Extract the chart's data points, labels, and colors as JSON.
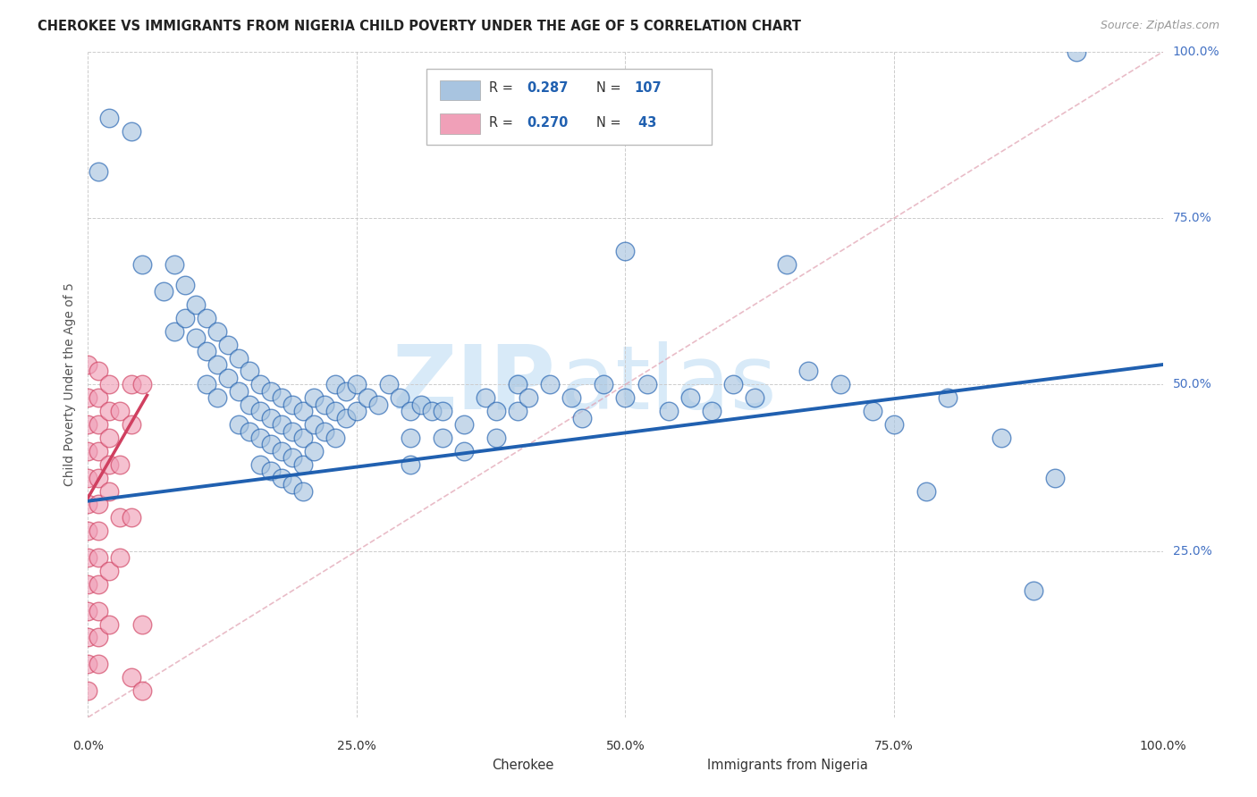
{
  "title": "CHEROKEE VS IMMIGRANTS FROM NIGERIA CHILD POVERTY UNDER THE AGE OF 5 CORRELATION CHART",
  "source": "Source: ZipAtlas.com",
  "ylabel": "Child Poverty Under the Age of 5",
  "xlim": [
    0.0,
    1.0
  ],
  "ylim": [
    0.0,
    1.0
  ],
  "xtick_labels": [
    "0.0%",
    "25.0%",
    "50.0%",
    "75.0%",
    "100.0%"
  ],
  "xtick_positions": [
    0.0,
    0.25,
    0.5,
    0.75,
    1.0
  ],
  "ytick_labels": [
    "25.0%",
    "50.0%",
    "75.0%",
    "100.0%"
  ],
  "ytick_positions": [
    0.25,
    0.5,
    0.75,
    1.0
  ],
  "cherokee_color": "#a8c4e0",
  "nigeria_color": "#f0a0b8",
  "cherokee_line_color": "#2060b0",
  "nigeria_line_color": "#d04060",
  "watermark_color": "#d8eaf8",
  "cherokee_intercept": 0.325,
  "cherokee_slope": 0.205,
  "nigeria_intercept": 0.33,
  "nigeria_slope": 2.8,
  "nigeria_line_xmax": 0.055,
  "cherokee_points": [
    [
      0.01,
      0.82
    ],
    [
      0.02,
      0.9
    ],
    [
      0.04,
      0.88
    ],
    [
      0.05,
      0.68
    ],
    [
      0.07,
      0.64
    ],
    [
      0.08,
      0.68
    ],
    [
      0.08,
      0.58
    ],
    [
      0.09,
      0.65
    ],
    [
      0.09,
      0.6
    ],
    [
      0.1,
      0.62
    ],
    [
      0.1,
      0.57
    ],
    [
      0.11,
      0.6
    ],
    [
      0.11,
      0.55
    ],
    [
      0.11,
      0.5
    ],
    [
      0.12,
      0.58
    ],
    [
      0.12,
      0.53
    ],
    [
      0.12,
      0.48
    ],
    [
      0.13,
      0.56
    ],
    [
      0.13,
      0.51
    ],
    [
      0.14,
      0.54
    ],
    [
      0.14,
      0.49
    ],
    [
      0.14,
      0.44
    ],
    [
      0.15,
      0.52
    ],
    [
      0.15,
      0.47
    ],
    [
      0.15,
      0.43
    ],
    [
      0.16,
      0.5
    ],
    [
      0.16,
      0.46
    ],
    [
      0.16,
      0.42
    ],
    [
      0.16,
      0.38
    ],
    [
      0.17,
      0.49
    ],
    [
      0.17,
      0.45
    ],
    [
      0.17,
      0.41
    ],
    [
      0.17,
      0.37
    ],
    [
      0.18,
      0.48
    ],
    [
      0.18,
      0.44
    ],
    [
      0.18,
      0.4
    ],
    [
      0.18,
      0.36
    ],
    [
      0.19,
      0.47
    ],
    [
      0.19,
      0.43
    ],
    [
      0.19,
      0.39
    ],
    [
      0.19,
      0.35
    ],
    [
      0.2,
      0.46
    ],
    [
      0.2,
      0.42
    ],
    [
      0.2,
      0.38
    ],
    [
      0.2,
      0.34
    ],
    [
      0.21,
      0.48
    ],
    [
      0.21,
      0.44
    ],
    [
      0.21,
      0.4
    ],
    [
      0.22,
      0.47
    ],
    [
      0.22,
      0.43
    ],
    [
      0.23,
      0.5
    ],
    [
      0.23,
      0.46
    ],
    [
      0.23,
      0.42
    ],
    [
      0.24,
      0.49
    ],
    [
      0.24,
      0.45
    ],
    [
      0.25,
      0.5
    ],
    [
      0.25,
      0.46
    ],
    [
      0.26,
      0.48
    ],
    [
      0.27,
      0.47
    ],
    [
      0.28,
      0.5
    ],
    [
      0.29,
      0.48
    ],
    [
      0.3,
      0.46
    ],
    [
      0.3,
      0.42
    ],
    [
      0.3,
      0.38
    ],
    [
      0.31,
      0.47
    ],
    [
      0.32,
      0.46
    ],
    [
      0.33,
      0.46
    ],
    [
      0.33,
      0.42
    ],
    [
      0.35,
      0.44
    ],
    [
      0.35,
      0.4
    ],
    [
      0.37,
      0.48
    ],
    [
      0.38,
      0.46
    ],
    [
      0.38,
      0.42
    ],
    [
      0.4,
      0.5
    ],
    [
      0.4,
      0.46
    ],
    [
      0.41,
      0.48
    ],
    [
      0.43,
      0.5
    ],
    [
      0.45,
      0.48
    ],
    [
      0.46,
      0.45
    ],
    [
      0.48,
      0.5
    ],
    [
      0.5,
      0.7
    ],
    [
      0.5,
      0.48
    ],
    [
      0.52,
      0.5
    ],
    [
      0.54,
      0.46
    ],
    [
      0.56,
      0.48
    ],
    [
      0.58,
      0.46
    ],
    [
      0.6,
      0.5
    ],
    [
      0.62,
      0.48
    ],
    [
      0.65,
      0.68
    ],
    [
      0.67,
      0.52
    ],
    [
      0.7,
      0.5
    ],
    [
      0.73,
      0.46
    ],
    [
      0.75,
      0.44
    ],
    [
      0.78,
      0.34
    ],
    [
      0.8,
      0.48
    ],
    [
      0.85,
      0.42
    ],
    [
      0.88,
      0.19
    ],
    [
      0.9,
      0.36
    ],
    [
      0.92,
      1.0
    ]
  ],
  "nigeria_points": [
    [
      0.0,
      0.53
    ],
    [
      0.0,
      0.48
    ],
    [
      0.0,
      0.44
    ],
    [
      0.0,
      0.4
    ],
    [
      0.0,
      0.36
    ],
    [
      0.0,
      0.32
    ],
    [
      0.0,
      0.28
    ],
    [
      0.0,
      0.24
    ],
    [
      0.0,
      0.2
    ],
    [
      0.0,
      0.16
    ],
    [
      0.0,
      0.12
    ],
    [
      0.0,
      0.08
    ],
    [
      0.0,
      0.04
    ],
    [
      0.01,
      0.52
    ],
    [
      0.01,
      0.48
    ],
    [
      0.01,
      0.44
    ],
    [
      0.01,
      0.4
    ],
    [
      0.01,
      0.36
    ],
    [
      0.01,
      0.32
    ],
    [
      0.01,
      0.28
    ],
    [
      0.01,
      0.24
    ],
    [
      0.01,
      0.2
    ],
    [
      0.01,
      0.16
    ],
    [
      0.01,
      0.12
    ],
    [
      0.01,
      0.08
    ],
    [
      0.02,
      0.5
    ],
    [
      0.02,
      0.46
    ],
    [
      0.02,
      0.42
    ],
    [
      0.02,
      0.38
    ],
    [
      0.02,
      0.34
    ],
    [
      0.02,
      0.22
    ],
    [
      0.02,
      0.14
    ],
    [
      0.03,
      0.46
    ],
    [
      0.03,
      0.38
    ],
    [
      0.03,
      0.3
    ],
    [
      0.03,
      0.24
    ],
    [
      0.04,
      0.5
    ],
    [
      0.04,
      0.44
    ],
    [
      0.04,
      0.3
    ],
    [
      0.04,
      0.06
    ],
    [
      0.05,
      0.5
    ],
    [
      0.05,
      0.14
    ],
    [
      0.05,
      0.04
    ]
  ]
}
